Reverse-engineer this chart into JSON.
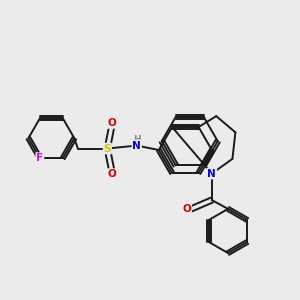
{
  "background_color": "#ebebeb",
  "bond_color": "#1a1a1a",
  "atom_colors": {
    "N": "#0000ee",
    "O": "#dd0000",
    "S": "#cccc00",
    "F": "#ee00ee",
    "H": "#888888",
    "C": "#1a1a1a"
  },
  "lw": 1.4
}
